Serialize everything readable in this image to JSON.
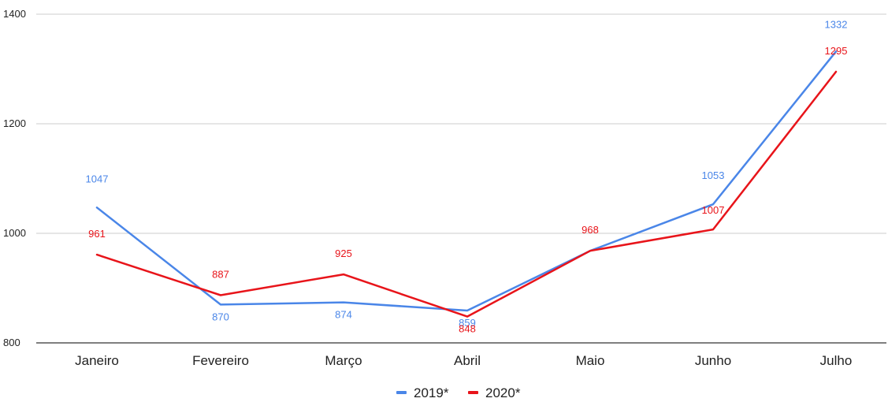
{
  "chart_data": {
    "type": "line",
    "categories": [
      "Janeiro",
      "Fevereiro",
      "Março",
      "Abril",
      "Maio",
      "Junho",
      "Julho"
    ],
    "series": [
      {
        "name": "2019*",
        "color": "#4a86e8",
        "values": [
          1047,
          870,
          874,
          859,
          968,
          1053,
          1332
        ]
      },
      {
        "name": "2020*",
        "color": "#e8141a",
        "values": [
          961,
          887,
          925,
          848,
          968,
          1007,
          1295
        ]
      }
    ],
    "data_labels": {
      "2019*": [
        "1047",
        "870",
        "874",
        "859",
        "",
        "1053",
        "1332"
      ],
      "2020*": [
        "961",
        "887",
        "925",
        "848",
        "968",
        "1007",
        "1295"
      ]
    },
    "title": "",
    "xlabel": "",
    "ylabel": "",
    "ylim": [
      800,
      1400
    ],
    "yticks": [
      "800",
      "1000",
      "1200",
      "1400"
    ],
    "grid": true,
    "legend_position": "bottom"
  }
}
